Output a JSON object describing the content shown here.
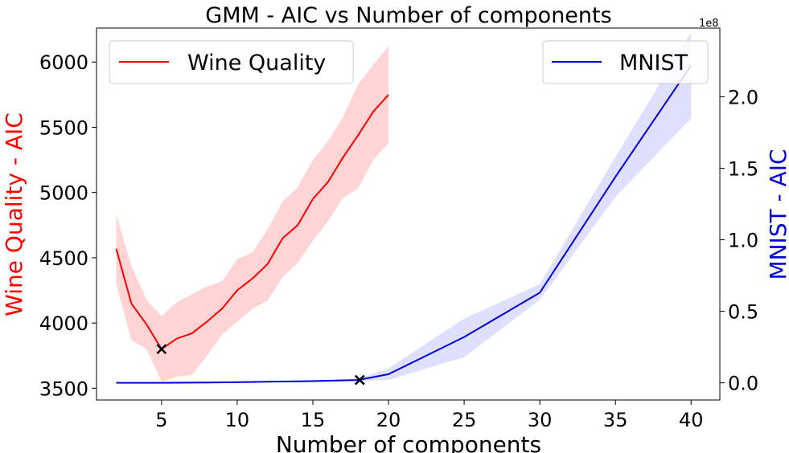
{
  "chart_data": {
    "type": "line",
    "title": "GMM - AIC vs Number of components",
    "xlabel": "Number of components",
    "ylabel_left": "Wine Quality - AIC",
    "ylabel_right": "MNIST - AIC",
    "right_offset_label": "1e8",
    "xlim": [
      0.7,
      41.9
    ],
    "ylim_left": [
      3410,
      6260
    ],
    "ylim_right": [
      -0.12,
      2.48
    ],
    "x_ticks": [
      5,
      10,
      15,
      20,
      25,
      30,
      35,
      40
    ],
    "x_tick_labels": [
      "5",
      "10",
      "15",
      "20",
      "25",
      "30",
      "35",
      "40"
    ],
    "y_left_ticks": [
      3500,
      4000,
      4500,
      5000,
      5500,
      6000
    ],
    "y_left_tick_labels": [
      "3500",
      "4000",
      "4500",
      "5000",
      "5500",
      "6000"
    ],
    "y_right_ticks": [
      0.0,
      0.5,
      1.0,
      1.5,
      2.0
    ],
    "y_right_tick_labels": [
      "0.0",
      "0.5",
      "1.0",
      "1.5",
      "2.0"
    ],
    "grid": false,
    "series": [
      {
        "name": "Wine Quality",
        "axis": "left",
        "color": "#ff0000",
        "band_color": "#ff0000",
        "legend_position": "top-left",
        "x": [
          2,
          3,
          4,
          5,
          6,
          7,
          8,
          9,
          10,
          11,
          12,
          13,
          14,
          15,
          16,
          17,
          18,
          19,
          20
        ],
        "values": [
          4570,
          4150,
          3990,
          3800,
          3880,
          3920,
          4010,
          4110,
          4250,
          4340,
          4450,
          4650,
          4750,
          4950,
          5080,
          5270,
          5440,
          5620,
          5750
        ],
        "lower": [
          4300,
          3870,
          3800,
          3550,
          3590,
          3600,
          3750,
          3910,
          4010,
          4110,
          4170,
          4350,
          4460,
          4630,
          4780,
          4960,
          5030,
          5250,
          5380
        ],
        "upper": [
          4830,
          4440,
          4180,
          4050,
          4160,
          4220,
          4280,
          4320,
          4490,
          4540,
          4720,
          4930,
          5040,
          5250,
          5390,
          5580,
          5830,
          5980,
          6120
        ],
        "marker": {
          "x": 5,
          "y": 3800
        }
      },
      {
        "name": "MNIST",
        "axis": "right",
        "color": "#0000dd",
        "band_color": "#4040ff",
        "legend_position": "top-right",
        "x": [
          2,
          5,
          8,
          10,
          12,
          15,
          18,
          20,
          25,
          30,
          35,
          40
        ],
        "values": [
          0.0,
          0.0,
          0.002,
          0.004,
          0.008,
          0.012,
          0.02,
          0.06,
          0.32,
          0.63,
          1.44,
          2.22
        ],
        "lower": [
          0.0,
          0.0,
          0.0,
          0.002,
          0.005,
          0.008,
          0.012,
          0.02,
          0.18,
          0.58,
          1.3,
          1.85
        ],
        "upper": [
          0.0,
          0.0,
          0.004,
          0.006,
          0.012,
          0.018,
          0.03,
          0.1,
          0.45,
          0.69,
          1.58,
          2.45
        ],
        "marker": {
          "x": 18.1,
          "y": 0.02
        }
      }
    ]
  }
}
